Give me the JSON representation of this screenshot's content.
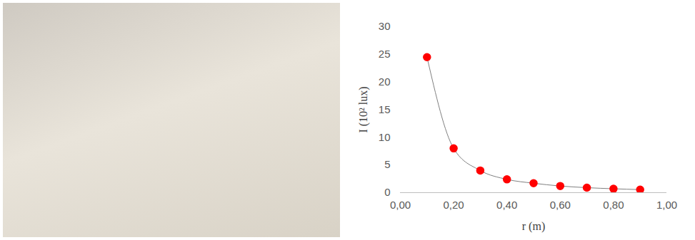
{
  "chart_data": {
    "type": "scatter",
    "x_label": "r (m)",
    "y_label": "I (10² lux)",
    "x": [
      0.1,
      0.2,
      0.3,
      0.4,
      0.5,
      0.6,
      0.7,
      0.8,
      0.9
    ],
    "series": [
      {
        "type": "line",
        "color": "#808080",
        "line_style": "solid",
        "values": [
          24.5,
          8,
          4,
          2.4,
          1.7,
          1.2,
          0.9,
          0.7,
          0.55
        ]
      },
      {
        "type": "scatter",
        "color": "#ff0000",
        "marker": "circle",
        "values": [
          24.5,
          8,
          4,
          2.4,
          1.7,
          1.2,
          0.9,
          0.7,
          0.55
        ]
      }
    ],
    "xlim": [
      0,
      1
    ],
    "xticks": [
      {
        "value": 0,
        "label": "0,00"
      },
      {
        "value": 0.2,
        "label": "0,20"
      },
      {
        "value": 0.4,
        "label": "0,40"
      },
      {
        "value": 0.6,
        "label": "0,60"
      },
      {
        "value": 0.8,
        "label": "0,80"
      },
      {
        "value": 1,
        "label": "1,00"
      }
    ],
    "ylim": [
      0,
      30
    ],
    "yticks": [
      0,
      5,
      10,
      15,
      20,
      25,
      30
    ],
    "grid": false
  }
}
